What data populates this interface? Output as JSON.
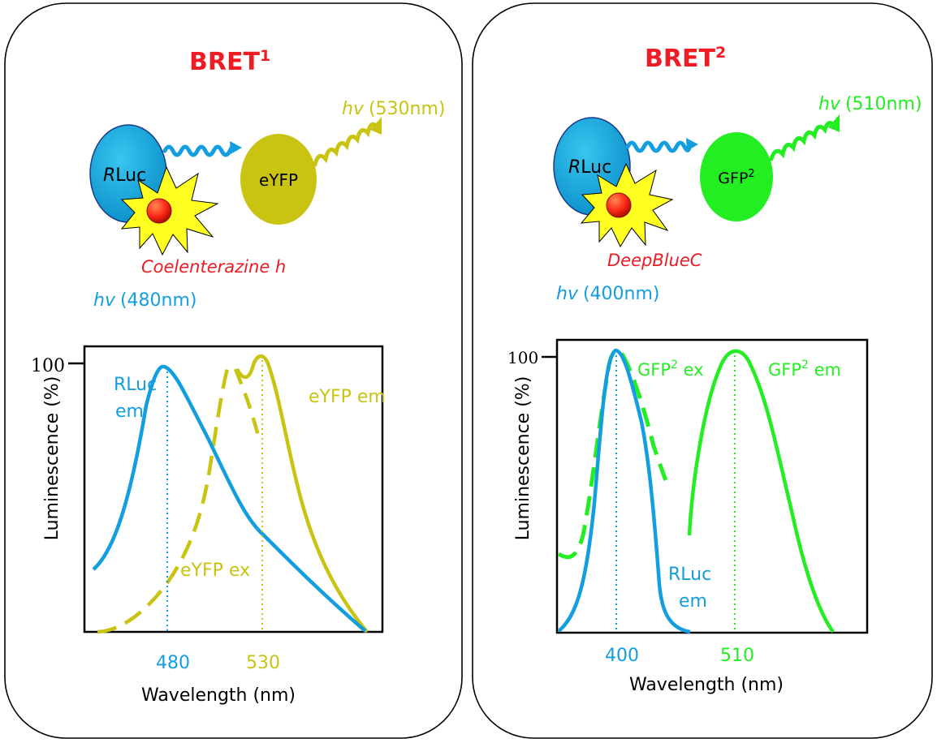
{
  "colors": {
    "title_red": "#ee1c25",
    "rluc_blue": "#139edf",
    "eyfp_yellow": "#c9c312",
    "gfp_green": "#22ee22",
    "substrate_red": "#ff2a1a",
    "burst_yellow": "#ffff22"
  },
  "bret1": {
    "title": "BRET",
    "title_sup": "1",
    "donor_label_prefix": "R",
    "donor_label_rest": "Luc",
    "acceptor_label": "eYFP",
    "substrate_label": "Coelenterazine h",
    "emission_hv": "hv",
    "emission_value": "(530nm)",
    "donor_hv": "hv",
    "donor_value": "(480nm)",
    "chart": {
      "y_tick_label": "100",
      "y_axis_label": "Luminescence (%)",
      "x_axis_label": "Wavelength (nm)",
      "x_tick_1": "480",
      "x_tick_2": "530",
      "curve_label_rluc_line1": "RLuc",
      "curve_label_rluc_line2": "em",
      "curve_label_eyfp_em": "eYFP em",
      "curve_label_eyfp_ex": "eYFP ex"
    }
  },
  "bret2": {
    "title": "BRET",
    "title_sup": "2",
    "donor_label_prefix": "R",
    "donor_label_rest": "Luc",
    "acceptor_label": "GFP",
    "acceptor_sup": "2",
    "substrate_label": "DeepBlueC",
    "emission_hv": "hv",
    "emission_value": "(510nm)",
    "donor_hv": "hv",
    "donor_value": "(400nm)",
    "chart": {
      "y_tick_label": "100",
      "y_axis_label": "Luminescence (%)",
      "x_axis_label": "Wavelength (nm)",
      "x_tick_1": "400",
      "x_tick_2": "510",
      "curve_label_gfp_ex": "GFP",
      "curve_label_gfp_ex_sup": "2",
      "curve_label_gfp_ex_rest": " ex",
      "curve_label_gfp_em": "GFP",
      "curve_label_gfp_em_sup": "2",
      "curve_label_gfp_em_rest": " em",
      "curve_label_rluc_line1": "RLuc",
      "curve_label_rluc_line2": "em"
    }
  }
}
